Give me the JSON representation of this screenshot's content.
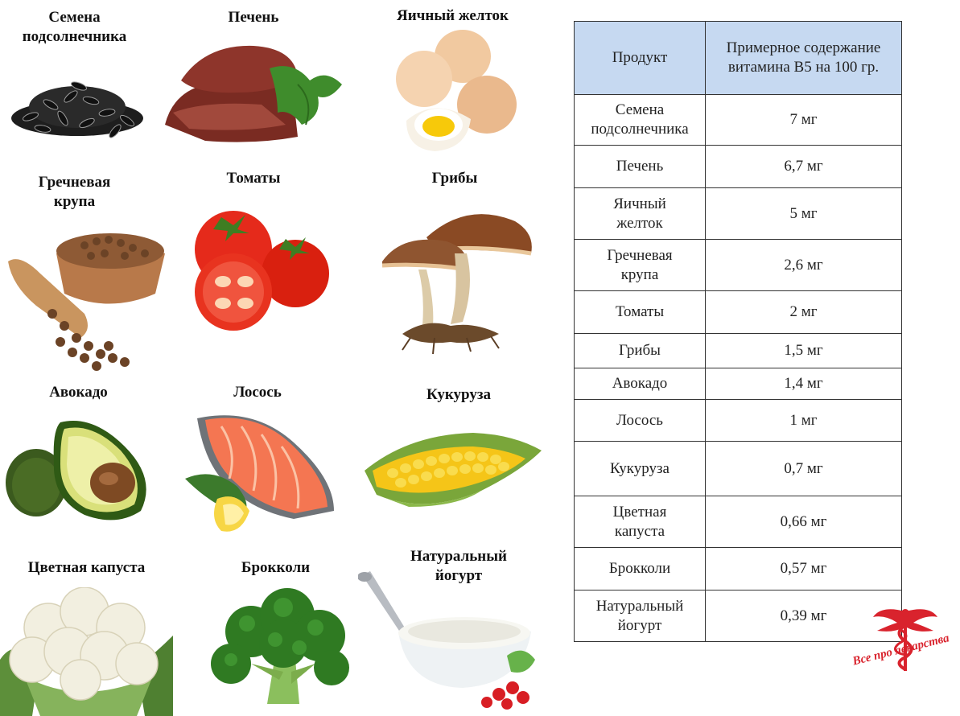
{
  "foods": [
    {
      "name": "Семена\nподсолнечника"
    },
    {
      "name": "Печень"
    },
    {
      "name": "Яичный желток"
    },
    {
      "name": "Гречневая\nкрупа"
    },
    {
      "name": "Томаты"
    },
    {
      "name": "Грибы"
    },
    {
      "name": "Авокадо"
    },
    {
      "name": "Лосось"
    },
    {
      "name": "Кукуруза"
    },
    {
      "name": "Цветная капуста"
    },
    {
      "name": "Брокколи"
    },
    {
      "name": "Натуральный\nйогурт"
    }
  ],
  "table": {
    "headers": [
      "Продукт",
      "Примерное содержание\nвитамина В5 на 100 гр."
    ],
    "rows": [
      {
        "product": "Семена\nподсолнечника",
        "amount": "7 мг"
      },
      {
        "product": "Печень",
        "amount": "6,7 мг"
      },
      {
        "product": "Яичный\nжелток",
        "amount": "5 мг"
      },
      {
        "product": "Гречневая\nкрупа",
        "amount": "2,6 мг"
      },
      {
        "product": "Томаты",
        "amount": "2 мг"
      },
      {
        "product": "Грибы",
        "amount": "1,5 мг"
      },
      {
        "product": "Авокадо",
        "amount": "1,4 мг"
      },
      {
        "product": "Лосось",
        "amount": "1 мг"
      },
      {
        "product": "Кукуруза",
        "amount": "0,7 мг"
      },
      {
        "product": "Цветная\nкапуста",
        "amount": "0,66 мг"
      },
      {
        "product": "Брокколи",
        "amount": "0,57 мг"
      },
      {
        "product": "Натуральный\nйогурт",
        "amount": "0,39 мг"
      }
    ]
  },
  "logo": {
    "text": "Все про лекарства",
    "color": "#d9232d"
  }
}
